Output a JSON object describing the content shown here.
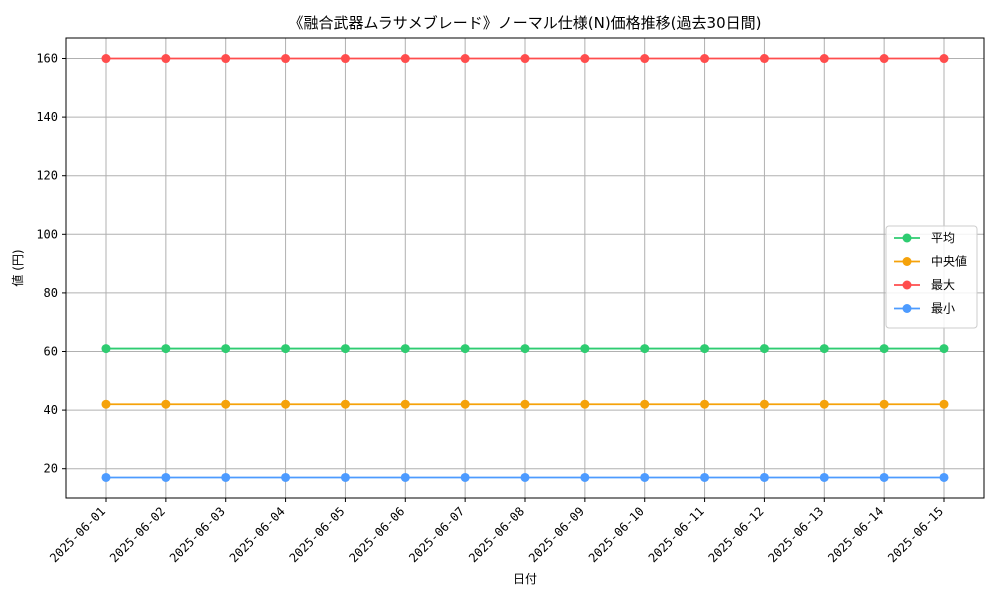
{
  "chart_data": {
    "type": "line",
    "title": "《融合武器ムラサメブレード》ノーマル仕様(N)価格推移(過去30日間)",
    "xlabel": "日付",
    "ylabel": "値 (円)",
    "categories": [
      "2025-06-01",
      "2025-06-02",
      "2025-06-03",
      "2025-06-04",
      "2025-06-05",
      "2025-06-06",
      "2025-06-07",
      "2025-06-08",
      "2025-06-09",
      "2025-06-10",
      "2025-06-11",
      "2025-06-12",
      "2025-06-13",
      "2025-06-14",
      "2025-06-15"
    ],
    "ylim": [
      10,
      167
    ],
    "yticks": [
      20,
      40,
      60,
      80,
      100,
      120,
      140,
      160
    ],
    "grid": true,
    "legend_position": "center-right",
    "series": [
      {
        "name": "平均",
        "color": "#2ecc71",
        "values": [
          61,
          61,
          61,
          61,
          61,
          61,
          61,
          61,
          61,
          61,
          61,
          61,
          61,
          61,
          61
        ]
      },
      {
        "name": "中央値",
        "color": "#f5a20a",
        "values": [
          42,
          42,
          42,
          42,
          42,
          42,
          42,
          42,
          42,
          42,
          42,
          42,
          42,
          42,
          42
        ]
      },
      {
        "name": "最大",
        "color": "#ff4d4d",
        "values": [
          160,
          160,
          160,
          160,
          160,
          160,
          160,
          160,
          160,
          160,
          160,
          160,
          160,
          160,
          160
        ]
      },
      {
        "name": "最小",
        "color": "#4d9bff",
        "values": [
          17,
          17,
          17,
          17,
          17,
          17,
          17,
          17,
          17,
          17,
          17,
          17,
          17,
          17,
          17
        ]
      }
    ]
  }
}
